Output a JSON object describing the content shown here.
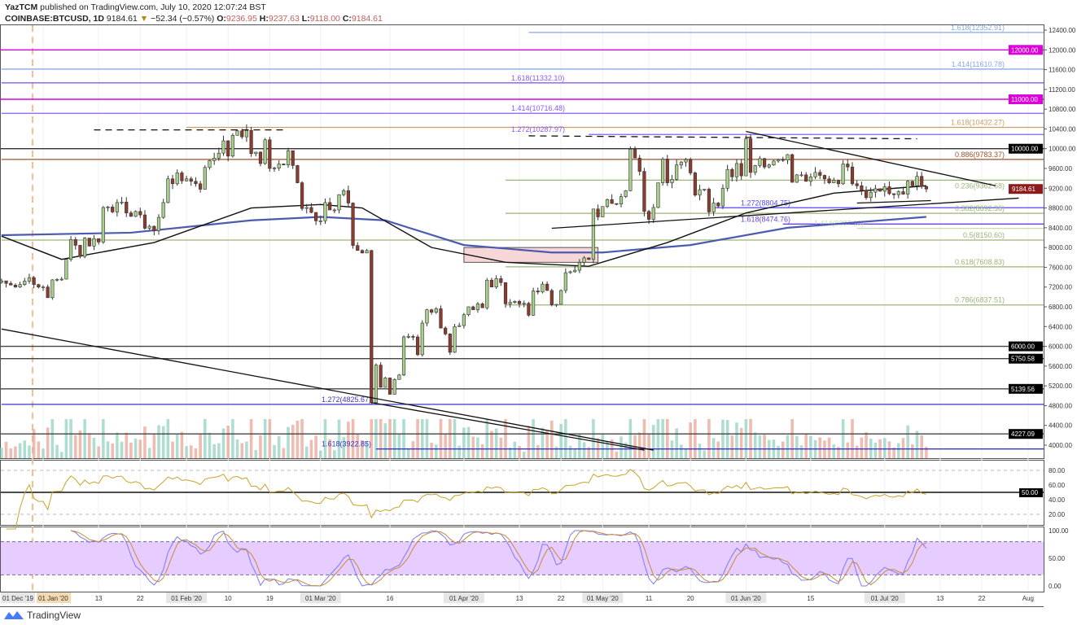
{
  "header": {
    "publisher_line": "YazTCM published on TradingView.com, July 10, 2020 12:07:24 BST",
    "publisher": "YazTCM",
    "symbol": "COINBASE:BTCUSD, 1D",
    "last": "9184.61",
    "change": "−52.34 (−0.57%)",
    "open_label": "O:",
    "open": "9236.95",
    "high_label": "H:",
    "high": "9237.63",
    "low_label": "L:",
    "low": "9118.00",
    "close_label": "C:",
    "close": "9184.61",
    "direction_icon": "triangle-down-icon"
  },
  "footer": {
    "brand": "TradingView",
    "logo_icon": "tradingview-logo-icon"
  },
  "colors": {
    "up": "#a9cf8c",
    "down": "#8c3b2c",
    "ma_fast": "#111111",
    "ma_slow": "#4a5bb0",
    "rsi": "#c9a227",
    "stoch_k": "#7b7bf0",
    "stoch_d": "#c98a3a",
    "stoch_band": "#e6ccff"
  },
  "chart_data": {
    "type": "candlestick",
    "price_axis": {
      "range": [
        4000,
        12400
      ],
      "ticks": [
        "12400.00",
        "12000.00",
        "11600.00",
        "11200.00",
        "10800.00",
        "10400.00",
        "10000.00",
        "9600.00",
        "9200.00",
        "8800.00",
        "8400.00",
        "8000.00",
        "7600.00",
        "7200.00",
        "6800.00",
        "6400.00",
        "6000.00",
        "5600.00",
        "5200.00",
        "4800.00",
        "4400.00",
        "4000.00"
      ],
      "last_price": "9184.61"
    },
    "time_axis": [
      {
        "label": "01 Dec '19",
        "date": "2019-12-23"
      },
      {
        "label": "01 Jan '20",
        "date": "2020-01-01"
      },
      {
        "label": "13",
        "date": "2020-01-13"
      },
      {
        "label": "22",
        "date": "2020-01-22"
      },
      {
        "label": "01 Feb '20",
        "date": "2020-02-01"
      },
      {
        "label": "10",
        "date": "2020-02-10"
      },
      {
        "label": "19",
        "date": "2020-02-19"
      },
      {
        "label": "01 Mar '20",
        "date": "2020-03-01"
      },
      {
        "label": "16",
        "date": "2020-03-16"
      },
      {
        "label": "01 Apr '20",
        "date": "2020-04-01"
      },
      {
        "label": "13",
        "date": "2020-04-13"
      },
      {
        "label": "22",
        "date": "2020-04-22"
      },
      {
        "label": "01 May '20",
        "date": "2020-05-01"
      },
      {
        "label": "11",
        "date": "2020-05-11"
      },
      {
        "label": "20",
        "date": "2020-05-20"
      },
      {
        "label": "01 Jun '20",
        "date": "2020-06-01"
      },
      {
        "label": "15",
        "date": "2020-06-15"
      },
      {
        "label": "01 Jul '20",
        "date": "2020-07-01"
      },
      {
        "label": "13",
        "date": "2020-07-13"
      },
      {
        "label": "22",
        "date": "2020-07-22"
      },
      {
        "label": "Aug",
        "date": "2020-08-01"
      }
    ],
    "closes": {
      "2019-12-23": 7325,
      "2019-12-24": 7275,
      "2019-12-25": 7240,
      "2019-12-26": 7200,
      "2019-12-27": 7250,
      "2019-12-28": 7320,
      "2019-12-29": 7390,
      "2019-12-30": 7250,
      "2019-12-31": 7200,
      "2020-01-01": 7200,
      "2020-01-02": 6985,
      "2020-01-03": 7345,
      "2020-01-04": 7355,
      "2020-01-05": 7360,
      "2020-01-06": 7760,
      "2020-01-07": 8160,
      "2020-01-08": 8045,
      "2020-01-09": 7820,
      "2020-01-10": 8190,
      "2020-01-11": 8030,
      "2020-01-12": 8180,
      "2020-01-13": 8110,
      "2020-01-14": 8810,
      "2020-01-15": 8820,
      "2020-01-16": 8720,
      "2020-01-17": 8910,
      "2020-01-18": 8920,
      "2020-01-19": 8700,
      "2020-01-20": 8630,
      "2020-01-21": 8730,
      "2020-01-22": 8660,
      "2020-01-23": 8390,
      "2020-01-24": 8430,
      "2020-01-25": 8340,
      "2020-01-26": 8610,
      "2020-01-27": 8910,
      "2020-01-28": 9390,
      "2020-01-29": 9290,
      "2020-01-30": 9510,
      "2020-01-31": 9350,
      "2020-02-01": 9390,
      "2020-02-02": 9340,
      "2020-02-03": 9290,
      "2020-02-04": 9180,
      "2020-02-05": 9620,
      "2020-02-06": 9760,
      "2020-02-07": 9810,
      "2020-02-08": 9910,
      "2020-02-09": 10160,
      "2020-02-10": 9850,
      "2020-02-11": 10270,
      "2020-02-12": 10360,
      "2020-02-13": 10240,
      "2020-02-14": 10370,
      "2020-02-15": 9900,
      "2020-02-16": 9930,
      "2020-02-17": 9700,
      "2020-02-18": 10180,
      "2020-02-19": 9600,
      "2020-02-20": 9610,
      "2020-02-21": 9690,
      "2020-02-22": 9670,
      "2020-02-23": 9960,
      "2020-02-24": 9660,
      "2020-02-25": 9310,
      "2020-02-26": 8790,
      "2020-02-27": 8810,
      "2020-02-28": 8710,
      "2020-02-29": 8540,
      "2020-03-01": 8540,
      "2020-03-02": 8910,
      "2020-03-03": 8760,
      "2020-03-04": 8760,
      "2020-03-05": 9070,
      "2020-03-06": 9150,
      "2020-03-07": 8900,
      "2020-03-08": 8040,
      "2020-03-09": 7940,
      "2020-03-10": 7890,
      "2020-03-11": 7940,
      "2020-03-12": 4860,
      "2020-03-13": 5620,
      "2020-03-14": 5170,
      "2020-03-15": 5360,
      "2020-03-16": 5030,
      "2020-03-17": 5330,
      "2020-03-18": 5420,
      "2020-03-19": 6190,
      "2020-03-20": 6200,
      "2020-03-21": 6190,
      "2020-03-22": 5830,
      "2020-03-23": 6470,
      "2020-03-24": 6740,
      "2020-03-25": 6690,
      "2020-03-26": 6760,
      "2020-03-27": 6370,
      "2020-03-28": 6250,
      "2020-03-29": 5880,
      "2020-03-30": 6400,
      "2020-03-31": 6420,
      "2020-04-01": 6640,
      "2020-04-02": 6800,
      "2020-04-03": 6740,
      "2020-04-04": 6860,
      "2020-04-05": 6780,
      "2020-04-06": 7340,
      "2020-04-07": 7200,
      "2020-04-08": 7370,
      "2020-04-09": 7290,
      "2020-04-10": 6860,
      "2020-04-11": 6890,
      "2020-04-12": 6910,
      "2020-04-13": 6860,
      "2020-04-14": 6870,
      "2020-04-15": 6630,
      "2020-04-16": 7120,
      "2020-04-17": 7100,
      "2020-04-18": 7260,
      "2020-04-19": 7130,
      "2020-04-20": 6840,
      "2020-04-21": 6850,
      "2020-04-22": 7130,
      "2020-04-23": 7490,
      "2020-04-24": 7510,
      "2020-04-25": 7540,
      "2020-04-26": 7700,
      "2020-04-27": 7790,
      "2020-04-28": 7760,
      "2020-04-29": 8780,
      "2020-04-30": 8620,
      "2020-05-01": 8830,
      "2020-05-02": 8970,
      "2020-05-03": 8890,
      "2020-05-04": 8880,
      "2020-05-05": 9030,
      "2020-05-06": 9150,
      "2020-05-07": 9990,
      "2020-05-08": 9810,
      "2020-05-09": 9540,
      "2020-05-10": 8730,
      "2020-05-11": 8570,
      "2020-05-12": 8810,
      "2020-05-13": 9310,
      "2020-05-14": 9790,
      "2020-05-15": 9310,
      "2020-05-16": 9380,
      "2020-05-17": 9670,
      "2020-05-18": 9730,
      "2020-05-19": 9780,
      "2020-05-20": 9510,
      "2020-05-21": 9060,
      "2020-05-22": 9170,
      "2020-05-23": 9180,
      "2020-05-24": 8720,
      "2020-05-25": 8900,
      "2020-05-26": 8840,
      "2020-05-27": 9200,
      "2020-05-28": 9580,
      "2020-05-29": 9430,
      "2020-05-30": 9700,
      "2020-05-31": 9450,
      "2020-06-01": 10200,
      "2020-06-02": 9520,
      "2020-06-03": 9660,
      "2020-06-04": 9800,
      "2020-06-05": 9630,
      "2020-06-06": 9670,
      "2020-06-07": 9750,
      "2020-06-08": 9780,
      "2020-06-09": 9770,
      "2020-06-10": 9880,
      "2020-06-11": 9320,
      "2020-06-12": 9470,
      "2020-06-13": 9470,
      "2020-06-14": 9340,
      "2020-06-15": 9430,
      "2020-06-16": 9520,
      "2020-06-17": 9460,
      "2020-06-18": 9390,
      "2020-06-19": 9310,
      "2020-06-20": 9360,
      "2020-06-21": 9290,
      "2020-06-22": 9690,
      "2020-06-23": 9630,
      "2020-06-24": 9290,
      "2020-06-25": 9250,
      "2020-06-26": 9160,
      "2020-06-27": 9010,
      "2020-06-28": 9120,
      "2020-06-29": 9190,
      "2020-06-30": 9140,
      "2020-07-01": 9230,
      "2020-07-02": 9090,
      "2020-07-03": 9070,
      "2020-07-04": 9130,
      "2020-07-05": 9080,
      "2020-07-06": 9340,
      "2020-07-07": 9250,
      "2020-07-08": 9440,
      "2020-07-09": 9237,
      "2020-07-10": 9184.61
    },
    "moving_averages": [
      {
        "color_key": "ma_slow",
        "points": [
          [
            "2019-12-23",
            8250
          ],
          [
            "2020-01-20",
            8300
          ],
          [
            "2020-02-15",
            8550
          ],
          [
            "2020-03-01",
            8620
          ],
          [
            "2020-03-15",
            8550
          ],
          [
            "2020-04-01",
            8050
          ],
          [
            "2020-04-20",
            7900
          ],
          [
            "2020-05-01",
            7900
          ],
          [
            "2020-05-20",
            8050
          ],
          [
            "2020-06-10",
            8400
          ],
          [
            "2020-07-10",
            8620
          ]
        ]
      },
      {
        "color_key": "ma_fast",
        "points": [
          [
            "2019-12-23",
            8230
          ],
          [
            "2020-01-05",
            7760
          ],
          [
            "2020-01-25",
            8100
          ],
          [
            "2020-02-15",
            8800
          ],
          [
            "2020-03-01",
            8870
          ],
          [
            "2020-03-10",
            8800
          ],
          [
            "2020-03-25",
            8000
          ],
          [
            "2020-04-10",
            7700
          ],
          [
            "2020-04-28",
            7620
          ],
          [
            "2020-05-15",
            8100
          ],
          [
            "2020-06-01",
            8700
          ],
          [
            "2020-06-20",
            9100
          ],
          [
            "2020-07-10",
            9250
          ]
        ]
      }
    ],
    "levels": [
      {
        "price": 12352.91,
        "label": "1.618(12352.91)",
        "color": "#86a8e8",
        "from": "2020-04-15"
      },
      {
        "price": 12000,
        "box": "12000.00",
        "color": "#dd00dd",
        "box_color": "#dd00dd"
      },
      {
        "price": 11610.78,
        "label": "1.414(11610.78)",
        "color": "#86a8e8",
        "from": "2019-12-23"
      },
      {
        "price": 11332.1,
        "label": "1.618(11332.10)",
        "color": "#8a5cf5",
        "from": "2019-12-23"
      },
      {
        "price": 11000,
        "box": "11000.00",
        "color": "#dd00dd",
        "box_color": "#dd00dd"
      },
      {
        "price": 10716.48,
        "label": "1.414(10716.48)",
        "color": "#8a5cf5",
        "from": "2019-12-23"
      },
      {
        "price": 10432.27,
        "label": "1.618(10432.27)",
        "color": "#c9a060",
        "from": "2020-02-01"
      },
      {
        "price": 10287.97,
        "label": "1.272(10287.97)",
        "color": "#8a5cf5",
        "from": "2020-04-28"
      },
      {
        "price": 10000,
        "box": "10000.00",
        "color": "#333333",
        "box_color": "#000000"
      },
      {
        "price": 9783.37,
        "label": "0.886(9783.37)",
        "color": "#a0522d",
        "from": "2019-12-23"
      },
      {
        "price": 9362.68,
        "label": "0.236(9362.68)",
        "color": "#9db475",
        "from": "2020-04-10"
      },
      {
        "price": 8804.75,
        "label": "1.272(8804.75)",
        "color": "#5545ff",
        "from": "2020-05-25"
      },
      {
        "price": 8692.36,
        "label": "0.382(8692.36)",
        "color": "#9db475",
        "from": "2020-04-10"
      },
      {
        "price": 8474.76,
        "label": "1.618(8474.76)",
        "color": "#6a40e0",
        "from": "2020-06-09"
      },
      {
        "price": 8387.1,
        "label": "1.414(8387.10)",
        "color": "#c8dcb0",
        "from": "2020-06-25"
      },
      {
        "price": 8150.6,
        "label": "0.5(8150.60)",
        "color": "#9db475",
        "from": "2019-12-23"
      },
      {
        "price": 7608.83,
        "label": "0.618(7608.83)",
        "color": "#9db475",
        "from": "2020-04-10"
      },
      {
        "price": 6837.51,
        "label": "0.786(6837.51)",
        "color": "#9db475",
        "from": "2020-04-10"
      },
      {
        "price": 6000,
        "box": "6000.00",
        "color": "#444444",
        "box_color": "#000000"
      },
      {
        "price": 5750.58,
        "box": "5750.58",
        "color": "#444444",
        "box_color": "#000000"
      },
      {
        "price": 5139.56,
        "box": "5139.56",
        "color": "#444444",
        "box_color": "#000000"
      },
      {
        "price": 4825.67,
        "label": "1.272(4825.67)",
        "color": "#3a35c8",
        "from": "2019-12-23"
      },
      {
        "price": 4227.09,
        "box": "4227.09",
        "color": "#444444",
        "box_color": "#000000"
      },
      {
        "price": 3922.85,
        "label": "1.618(3922.85)",
        "color": "#3a35c8",
        "from": "2020-03-13"
      }
    ],
    "trendlines": [
      {
        "from": [
          "2020-04-20",
          8390
        ],
        "to": [
          "2020-07-30",
          9000
        ],
        "style": "solid"
      },
      {
        "from": [
          "2020-06-01",
          10350
        ],
        "to": [
          "2020-07-25",
          9250
        ],
        "style": "solid"
      },
      {
        "from": [
          "2020-06-25",
          8900
        ],
        "to": [
          "2020-07-11",
          8950
        ],
        "style": "solid"
      },
      {
        "from": [
          "2019-12-23",
          6350
        ],
        "to": [
          "2020-05-12",
          3900
        ],
        "style": "solid"
      },
      {
        "from": [
          "2020-03-12",
          4860
        ],
        "to": [
          "2020-05-10",
          3900
        ],
        "style": "solid"
      },
      {
        "from": [
          "2020-01-12",
          10380
        ],
        "to": [
          "2020-02-22",
          10380
        ],
        "style": "dashed"
      },
      {
        "from": [
          "2020-04-15",
          10260
        ],
        "to": [
          "2020-07-08",
          10200
        ],
        "style": "dashed"
      }
    ],
    "zones": [
      {
        "from": [
          "2020-04-01",
          8000
        ],
        "to": [
          "2020-04-30",
          7700
        ],
        "color": "#f6d6d6"
      }
    ],
    "rsi": {
      "period": 14,
      "ticks": [
        "80.00",
        "60.00",
        "40.00",
        "20.00"
      ],
      "level_box": "50.00",
      "range": [
        0,
        100
      ]
    },
    "stoch_rsi": {
      "ticks": [
        "100.00",
        "50.00",
        "0.00"
      ],
      "bands": [
        80,
        20
      ],
      "range": [
        0,
        100
      ]
    }
  }
}
